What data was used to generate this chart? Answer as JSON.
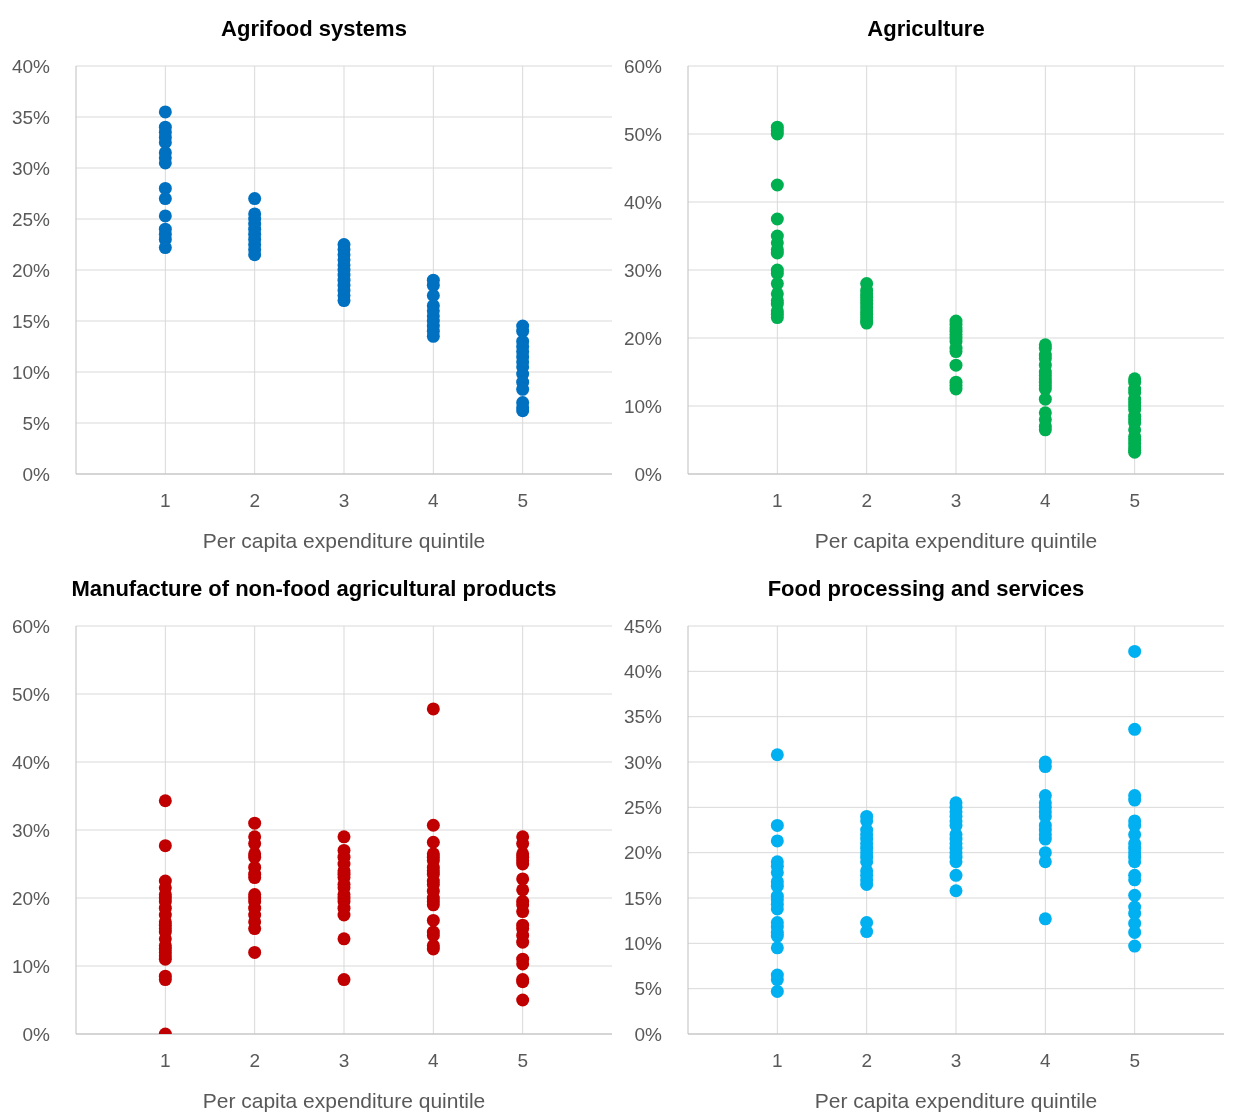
{
  "chart_data": [
    {
      "type": "scatter",
      "title": "Agrifood systems",
      "xlabel": "Per capita expenditure quintile",
      "xlim": [
        0,
        6
      ],
      "xticks": [
        1,
        2,
        3,
        4,
        5
      ],
      "ylim": [
        0,
        40
      ],
      "yticks": [
        {
          "value": 0,
          "label": "0%"
        },
        {
          "value": 5,
          "label": "5%"
        },
        {
          "value": 10,
          "label": "10%"
        },
        {
          "value": 15,
          "label": "15%"
        },
        {
          "value": 20,
          "label": "20%"
        },
        {
          "value": 25,
          "label": "25%"
        },
        {
          "value": 30,
          "label": "30%"
        },
        {
          "value": 35,
          "label": "35%"
        },
        {
          "value": 40,
          "label": "40%"
        }
      ],
      "grid": true,
      "marker": "circle",
      "legend": false,
      "series": [
        {
          "color": "#0070c0",
          "x": [
            1,
            1,
            1,
            1,
            1,
            1,
            1,
            1,
            1,
            1,
            1,
            1,
            1,
            1,
            1,
            2,
            2,
            2,
            2,
            2,
            2,
            2,
            2,
            2,
            2,
            3,
            3,
            3,
            3,
            3,
            3,
            3,
            3,
            3,
            3,
            3,
            3,
            4,
            4,
            4,
            4,
            4,
            4,
            4,
            4,
            4,
            4,
            5,
            5,
            5,
            5,
            5,
            5,
            5,
            5,
            5,
            5,
            5,
            5,
            5,
            5
          ],
          "values": [
            35.5,
            34,
            33.5,
            33,
            32.5,
            31.5,
            31,
            30.5,
            28,
            27,
            25.3,
            24,
            23.5,
            23,
            22.2,
            27,
            25.5,
            25,
            24.5,
            24,
            23.5,
            23,
            22.5,
            22,
            21.5,
            22.5,
            22,
            21.5,
            21,
            20.5,
            20,
            19.5,
            19,
            18.5,
            18,
            17.5,
            17,
            19,
            18.5,
            17.5,
            16.5,
            16,
            15.5,
            15,
            14.5,
            14,
            13.5,
            14.5,
            14,
            13,
            12.5,
            12,
            11.5,
            11,
            10.5,
            9.8,
            9,
            8.3,
            7,
            6.5,
            6.2
          ]
        }
      ]
    },
    {
      "type": "scatter",
      "title": "Agriculture",
      "xlabel": "Per capita expenditure quintile",
      "xlim": [
        0,
        6
      ],
      "xticks": [
        1,
        2,
        3,
        4,
        5
      ],
      "ylim": [
        0,
        60
      ],
      "yticks": [
        {
          "value": 0,
          "label": "0%"
        },
        {
          "value": 10,
          "label": "10%"
        },
        {
          "value": 20,
          "label": "20%"
        },
        {
          "value": 30,
          "label": "30%"
        },
        {
          "value": 40,
          "label": "40%"
        },
        {
          "value": 50,
          "label": "50%"
        },
        {
          "value": 60,
          "label": "60%"
        }
      ],
      "grid": true,
      "marker": "circle",
      "legend": false,
      "series": [
        {
          "color": "#00b050",
          "x": [
            1,
            1,
            1,
            1,
            1,
            1,
            1,
            1,
            1,
            1,
            1,
            1,
            1,
            1,
            1,
            1,
            1,
            1,
            2,
            2,
            2,
            2,
            2,
            2,
            2,
            2,
            2,
            2,
            2,
            2,
            3,
            3,
            3,
            3,
            3,
            3,
            3,
            3,
            3,
            3,
            3,
            3,
            3,
            4,
            4,
            4,
            4,
            4,
            4,
            4,
            4,
            4,
            4,
            4,
            4,
            4,
            4,
            4,
            4,
            5,
            5,
            5,
            5,
            5,
            5,
            5,
            5,
            5,
            5,
            5,
            5,
            5,
            5,
            5,
            5,
            5,
            5
          ],
          "values": [
            51,
            50.5,
            50,
            42.5,
            37.5,
            35,
            34,
            33,
            32.5,
            30,
            29.5,
            28,
            26.5,
            25.5,
            25,
            24,
            23.5,
            23,
            28,
            27,
            26.5,
            26,
            25.5,
            25,
            24.5,
            24,
            23.5,
            23,
            22.5,
            22.2,
            22.5,
            22,
            21.5,
            21,
            20.5,
            20,
            19.5,
            18.5,
            18,
            16,
            13.5,
            13,
            12.5,
            19,
            18.5,
            17.5,
            17,
            16,
            15,
            14.5,
            14,
            13.5,
            13,
            12.5,
            11,
            9,
            8,
            7,
            6.5,
            14,
            13.5,
            12.5,
            12,
            11,
            10.5,
            10,
            9.5,
            8.5,
            8,
            7.5,
            6.5,
            5.5,
            5,
            4.5,
            4,
            3.5,
            3.2
          ]
        }
      ]
    },
    {
      "type": "scatter",
      "title": "Manufacture of non-food agricultural products",
      "xlabel": "Per capita expenditure quintile",
      "xlim": [
        0,
        6
      ],
      "xticks": [
        1,
        2,
        3,
        4,
        5
      ],
      "ylim": [
        0,
        60
      ],
      "yticks": [
        {
          "value": 0,
          "label": "0%"
        },
        {
          "value": 10,
          "label": "10%"
        },
        {
          "value": 20,
          "label": "20%"
        },
        {
          "value": 30,
          "label": "30%"
        },
        {
          "value": 40,
          "label": "40%"
        },
        {
          "value": 50,
          "label": "50%"
        },
        {
          "value": 60,
          "label": "60%"
        }
      ],
      "grid": true,
      "marker": "circle",
      "legend": false,
      "series": [
        {
          "color": "#c00000",
          "x": [
            1,
            1,
            1,
            1,
            1,
            1,
            1,
            1,
            1,
            1,
            1,
            1,
            1,
            1,
            1,
            1,
            1,
            1,
            1,
            1,
            1,
            1,
            2,
            2,
            2,
            2,
            2,
            2,
            2,
            2,
            2,
            2,
            2,
            2,
            2,
            2,
            2,
            2,
            3,
            3,
            3,
            3,
            3,
            3,
            3,
            3,
            3,
            3,
            3,
            3,
            3,
            3,
            3,
            3,
            4,
            4,
            4,
            4,
            4,
            4,
            4,
            4,
            4,
            4,
            4,
            4,
            4,
            4,
            4,
            4,
            4,
            4,
            4,
            4,
            5,
            5,
            5,
            5,
            5,
            5,
            5,
            5,
            5,
            5,
            5,
            5,
            5,
            5,
            5,
            5,
            5,
            5,
            5,
            5
          ],
          "values": [
            34.3,
            27.7,
            22.5,
            21.5,
            20.5,
            20,
            19.5,
            18.5,
            17.5,
            16.5,
            16,
            15.5,
            15,
            14,
            13,
            12.5,
            12,
            11.5,
            11,
            8.5,
            8,
            0,
            31,
            29,
            28,
            26.5,
            26,
            24.5,
            23.5,
            23,
            20.5,
            20,
            19.5,
            18.5,
            17.5,
            16.5,
            15.5,
            12,
            29,
            27,
            26,
            25,
            24,
            23.5,
            23,
            22,
            21.5,
            20.5,
            20,
            19.5,
            18.5,
            17.5,
            14,
            8,
            47.8,
            30.7,
            28.2,
            26.5,
            26,
            25.5,
            24.5,
            24,
            23.5,
            22.5,
            22,
            21,
            20,
            19.5,
            19,
            16.7,
            15,
            14.5,
            13,
            12.5,
            29,
            28,
            26.5,
            26,
            25.5,
            25,
            22.8,
            21.2,
            19.5,
            19,
            18,
            16,
            15.5,
            14.5,
            13.5,
            11,
            10.3,
            8,
            7.7,
            5
          ]
        }
      ]
    },
    {
      "type": "scatter",
      "title": "Food processing and services",
      "xlabel": "Per capita expenditure quintile",
      "xlim": [
        0,
        6
      ],
      "xticks": [
        1,
        2,
        3,
        4,
        5
      ],
      "ylim": [
        0,
        45
      ],
      "yticks": [
        {
          "value": 0,
          "label": "0%"
        },
        {
          "value": 5,
          "label": "5%"
        },
        {
          "value": 10,
          "label": "10%"
        },
        {
          "value": 15,
          "label": "15%"
        },
        {
          "value": 20,
          "label": "20%"
        },
        {
          "value": 25,
          "label": "25%"
        },
        {
          "value": 30,
          "label": "30%"
        },
        {
          "value": 35,
          "label": "35%"
        },
        {
          "value": 40,
          "label": "40%"
        },
        {
          "value": 45,
          "label": "45%"
        }
      ],
      "grid": true,
      "marker": "circle",
      "legend": false,
      "series": [
        {
          "color": "#00b0f0",
          "x": [
            1,
            1,
            1,
            1,
            1,
            1,
            1,
            1,
            1,
            1,
            1,
            1,
            1,
            1,
            1,
            1,
            1,
            1,
            1,
            1,
            2,
            2,
            2,
            2,
            2,
            2,
            2,
            2,
            2,
            2,
            2,
            2,
            2,
            2,
            2,
            2,
            3,
            3,
            3,
            3,
            3,
            3,
            3,
            3,
            3,
            3,
            3,
            3,
            3,
            3,
            3,
            4,
            4,
            4,
            4,
            4,
            4,
            4,
            4,
            4,
            4,
            4,
            4,
            4,
            4,
            5,
            5,
            5,
            5,
            5,
            5,
            5,
            5,
            5,
            5,
            5,
            5,
            5,
            5,
            5,
            5,
            5,
            5,
            5,
            5
          ],
          "values": [
            30.8,
            23,
            21.3,
            19,
            18.5,
            17.8,
            16.8,
            16.3,
            15.2,
            14.8,
            14.3,
            13.8,
            12.3,
            11.8,
            11.2,
            10.8,
            9.5,
            6.5,
            6,
            4.7,
            24,
            23.5,
            22.5,
            22,
            21.5,
            21,
            20.5,
            20,
            19.5,
            19,
            18,
            17.5,
            17,
            16.5,
            12.3,
            11.3,
            25.5,
            25,
            24.5,
            24,
            23.5,
            23,
            22,
            21.5,
            21,
            20.5,
            20,
            19.5,
            19,
            17.5,
            15.8,
            30,
            29.5,
            26.3,
            25.5,
            25,
            24.5,
            24,
            23,
            22.5,
            22,
            21.5,
            20,
            19,
            12.7,
            42.2,
            33.6,
            26.3,
            25.8,
            23.5,
            23,
            22,
            21,
            20.5,
            20,
            19.5,
            19,
            17.5,
            17,
            15.3,
            14,
            13.3,
            12.2,
            11.2,
            9.7
          ]
        }
      ]
    }
  ]
}
